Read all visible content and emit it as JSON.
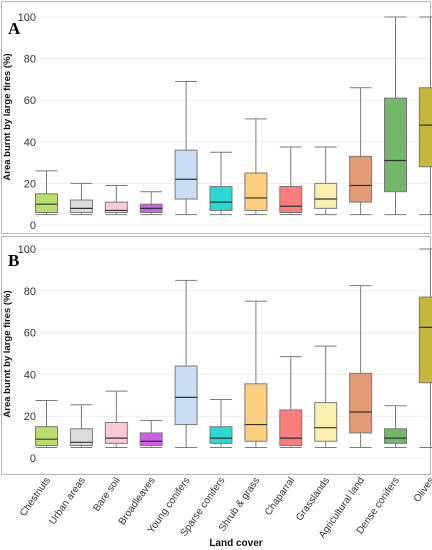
{
  "x_title": "Land cover",
  "categories": [
    "Chestnuts",
    "Urban areas",
    "Bare soil",
    "Broadleaves",
    "Young conifers",
    "Sparse conifers",
    "Shrub & grass",
    "Chaparral",
    "Grasslands",
    "Agricultural land",
    "Dense conifers",
    "Olives"
  ],
  "colors": [
    "#b5de6a",
    "#dcdcdc",
    "#f9c9d6",
    "#cf5ee9",
    "#c9ddf6",
    "#2ad9d1",
    "#fccf7f",
    "#f97d7a",
    "#f9f0ad",
    "#e39b74",
    "#74b76b",
    "#c4b93a"
  ],
  "chart_data": [
    {
      "type": "box",
      "panel_label": "A",
      "ylabel": "Area burnt by large fires (%)",
      "ylim": [
        -3,
        102
      ],
      "yticks": [
        0,
        20,
        40,
        60,
        80,
        100
      ],
      "boxes": [
        {
          "category": "Chestnuts",
          "min": 5,
          "q1": 6,
          "median": 10,
          "q3": 15,
          "max": 26
        },
        {
          "category": "Urban areas",
          "min": 5,
          "q1": 6,
          "median": 8,
          "q3": 12,
          "max": 20
        },
        {
          "category": "Bare soil",
          "min": 5,
          "q1": 6,
          "median": 7,
          "q3": 11,
          "max": 19
        },
        {
          "category": "Broadleaves",
          "min": 5,
          "q1": 6,
          "median": 8,
          "q3": 10,
          "max": 16
        },
        {
          "category": "Young conifers",
          "min": 5,
          "q1": 12.5,
          "median": 22,
          "q3": 36,
          "max": 69
        },
        {
          "category": "Sparse conifers",
          "min": 5,
          "q1": 7,
          "median": 11,
          "q3": 18.5,
          "max": 35
        },
        {
          "category": "Shrub & grass",
          "min": 5,
          "q1": 7,
          "median": 13,
          "q3": 25,
          "max": 51
        },
        {
          "category": "Chaparral",
          "min": 5,
          "q1": 6,
          "median": 9,
          "q3": 18.5,
          "max": 37.5
        },
        {
          "category": "Grasslands",
          "min": 5,
          "q1": 8,
          "median": 12.5,
          "q3": 20,
          "max": 37.5
        },
        {
          "category": "Agricultural land",
          "min": 5,
          "q1": 11,
          "median": 19,
          "q3": 33,
          "max": 66
        },
        {
          "category": "Dense conifers",
          "min": 5,
          "q1": 16,
          "median": 31,
          "q3": 61,
          "max": 100
        },
        {
          "category": "Olives",
          "min": 5,
          "q1": 28,
          "median": 48,
          "q3": 66,
          "max": 100
        }
      ]
    },
    {
      "type": "box",
      "panel_label": "B",
      "ylabel": "Area burnt by large fires (%)",
      "ylim": [
        -3,
        102
      ],
      "yticks": [
        0,
        20,
        40,
        60,
        80,
        100
      ],
      "boxes": [
        {
          "category": "Chestnuts",
          "min": 5,
          "q1": 6,
          "median": 9,
          "q3": 15,
          "max": 27.5
        },
        {
          "category": "Urban areas",
          "min": 5,
          "q1": 6,
          "median": 7.5,
          "q3": 14,
          "max": 25.5
        },
        {
          "category": "Bare soil",
          "min": 5,
          "q1": 7,
          "median": 9.5,
          "q3": 17,
          "max": 32
        },
        {
          "category": "Broadleaves",
          "min": 5,
          "q1": 6,
          "median": 8,
          "q3": 12,
          "max": 18
        },
        {
          "category": "Young conifers",
          "min": 5,
          "q1": 16,
          "median": 29,
          "q3": 44,
          "max": 85
        },
        {
          "category": "Sparse conifers",
          "min": 5,
          "q1": 7,
          "median": 9.5,
          "q3": 15,
          "max": 28
        },
        {
          "category": "Shrub & grass",
          "min": 5,
          "q1": 8,
          "median": 16,
          "q3": 35.5,
          "max": 75
        },
        {
          "category": "Chaparral",
          "min": 5,
          "q1": 6,
          "median": 9.5,
          "q3": 23,
          "max": 48.5
        },
        {
          "category": "Grasslands",
          "min": 5,
          "q1": 8,
          "median": 14.5,
          "q3": 26.5,
          "max": 53.5
        },
        {
          "category": "Agricultural land",
          "min": 5,
          "q1": 12,
          "median": 22,
          "q3": 40.5,
          "max": 82.5
        },
        {
          "category": "Dense conifers",
          "min": 5,
          "q1": 7,
          "median": 9.5,
          "q3": 14,
          "max": 25
        },
        {
          "category": "Olives",
          "min": 5,
          "q1": 36,
          "median": 62.5,
          "q3": 77,
          "max": 100
        }
      ]
    }
  ]
}
